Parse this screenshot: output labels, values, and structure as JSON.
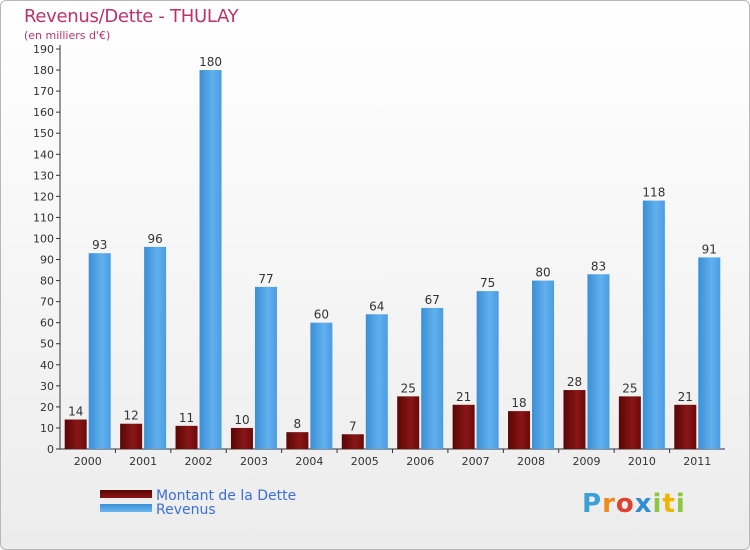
{
  "title": "Revenus/Dette - THULAY",
  "subtitle": "(en milliers d'€)",
  "chart_data": {
    "type": "bar",
    "categories": [
      "2000",
      "2001",
      "2002",
      "2003",
      "2004",
      "2005",
      "2006",
      "2007",
      "2008",
      "2009",
      "2010",
      "2011"
    ],
    "series": [
      {
        "name": "Montant de la Dette",
        "color": "#7a0a0a",
        "values": [
          14,
          12,
          11,
          10,
          8,
          7,
          25,
          21,
          18,
          28,
          25,
          21
        ]
      },
      {
        "name": "Revenus",
        "color": "#4ea3e6",
        "values": [
          93,
          96,
          180,
          77,
          60,
          64,
          67,
          75,
          80,
          83,
          118,
          91
        ]
      }
    ],
    "ylim": [
      0,
      190
    ],
    "yticks": [
      0,
      10,
      20,
      30,
      40,
      50,
      60,
      70,
      80,
      90,
      100,
      110,
      120,
      130,
      140,
      150,
      160,
      170,
      180,
      190
    ],
    "xlabel": "",
    "ylabel": "",
    "grid": false
  },
  "legend": {
    "debt_label": "Montant de la Dette",
    "revenue_label": "Revenus"
  },
  "logo": {
    "p": "P",
    "r": "r",
    "o": "o",
    "x": "x",
    "i1": "i",
    "t": "t",
    "i2": "i"
  }
}
